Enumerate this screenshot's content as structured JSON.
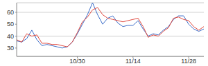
{
  "chart_data": {
    "type": "line",
    "categories": [
      null,
      null,
      null,
      null,
      null,
      null,
      null,
      null,
      null,
      null,
      null,
      null,
      "10/30",
      null,
      null,
      null,
      null,
      null,
      null,
      null,
      null,
      null,
      null,
      "11/14",
      null,
      null,
      null,
      null,
      null,
      null,
      null,
      null,
      null,
      null,
      "11/28",
      null,
      null,
      null
    ],
    "series": [
      {
        "color": "#3a6cc8",
        "values": [
          36,
          35,
          38,
          45,
          37,
          32,
          33,
          32,
          31,
          30,
          31,
          35,
          42,
          50,
          58,
          68,
          58,
          50,
          55,
          57,
          51,
          48,
          49,
          49,
          53,
          46,
          40,
          42,
          41,
          45,
          48,
          54,
          57,
          57,
          50,
          46,
          44,
          46
        ]
      },
      {
        "color": "#e0483e",
        "values": [
          37,
          35,
          42,
          40,
          41,
          34,
          34,
          33,
          33,
          32,
          31,
          35,
          43,
          52,
          56,
          62,
          64,
          58,
          55,
          54,
          53,
          52,
          53,
          54,
          55,
          48,
          39,
          41,
          40,
          44,
          47,
          55,
          56,
          54,
          53,
          48,
          45,
          48
        ]
      }
    ],
    "ylim": [
      23,
      68
    ],
    "yticks": [
      30,
      40,
      50,
      60
    ],
    "grid": true
  }
}
